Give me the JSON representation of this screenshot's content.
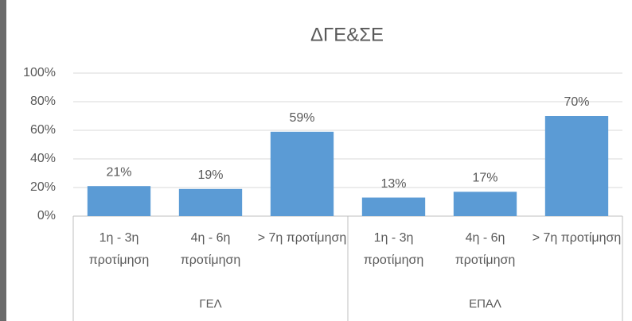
{
  "chart_data": {
    "type": "bar",
    "title": "ΔΓΕ&ΣΕ",
    "color": "#5b9bd5",
    "ylim": [
      0,
      100
    ],
    "yticks": [
      {
        "value": 0,
        "label": "0%"
      },
      {
        "value": 20,
        "label": "20%"
      },
      {
        "value": 40,
        "label": "40%"
      },
      {
        "value": 60,
        "label": "60%"
      },
      {
        "value": 80,
        "label": "80%"
      },
      {
        "value": 100,
        "label": "100%"
      }
    ],
    "grid": true,
    "groups": [
      {
        "name": "ΓΕΛ",
        "categories": [
          "1η - 3η προτίμηση",
          "4η - 6η προτίμηση",
          "> 7η προτίμηση"
        ],
        "values": [
          21,
          19,
          59
        ],
        "value_labels": [
          "21%",
          "19%",
          "59%"
        ]
      },
      {
        "name": "ΕΠΑΛ",
        "categories": [
          "1η - 3η προτίμηση",
          "4η - 6η προτίμηση",
          "> 7η προτίμηση"
        ],
        "values": [
          13,
          17,
          70
        ],
        "value_labels": [
          "13%",
          "17%",
          "70%"
        ]
      }
    ]
  }
}
